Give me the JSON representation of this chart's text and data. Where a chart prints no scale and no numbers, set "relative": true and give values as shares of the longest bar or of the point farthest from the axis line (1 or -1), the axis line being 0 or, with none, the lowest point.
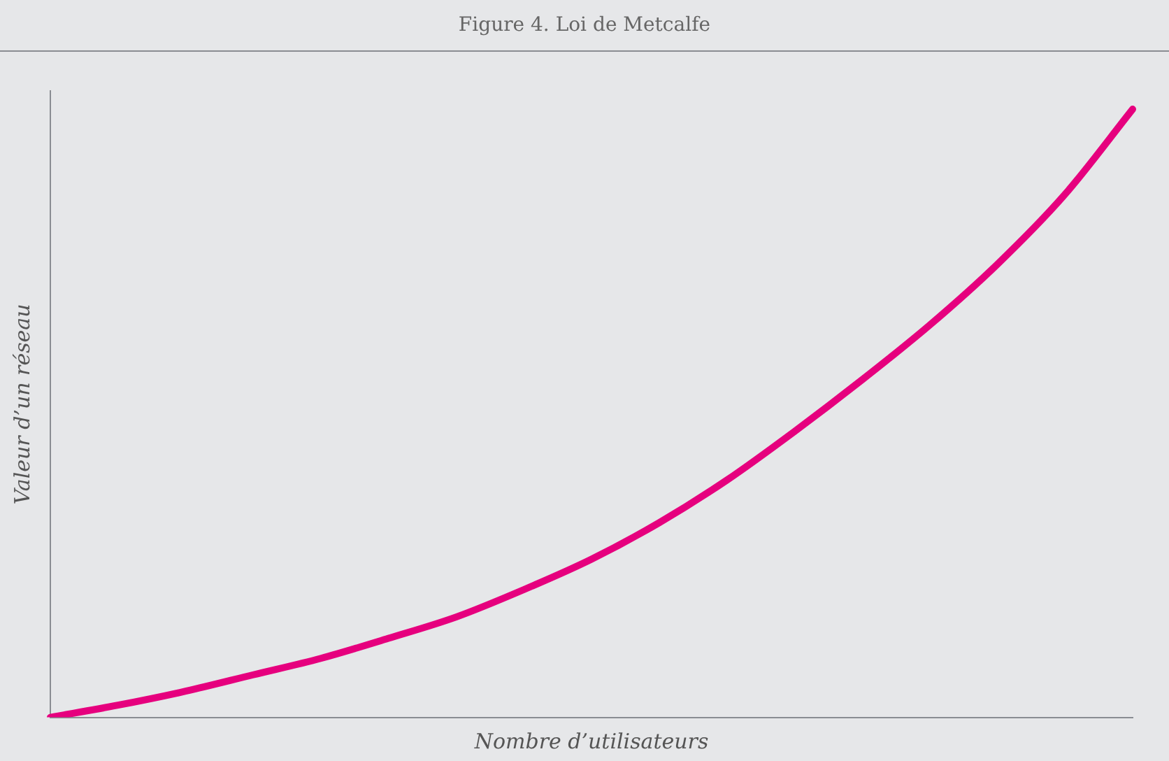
{
  "chart_data": {
    "type": "line",
    "title": "Figure 4. Loi de Metcalfe",
    "xlabel": "Nombre d’utilisateurs",
    "ylabel": "Valeur d’un réseau",
    "relative": true,
    "categories": [
      null,
      null,
      null,
      null,
      null,
      null,
      null,
      null,
      null,
      null,
      null,
      null,
      null,
      null,
      null,
      null,
      null
    ],
    "series": [
      {
        "color": "#e6007e",
        "values": [
          0,
          0.02,
          0.043,
          0.07,
          0.097,
          0.13,
          0.165,
          0.21,
          0.26,
          0.32,
          0.39,
          0.47,
          0.555,
          0.645,
          0.745,
          0.86,
          1
        ]
      }
    ],
    "grid": false,
    "legend": false,
    "marker": "none",
    "line_style": "solid"
  }
}
